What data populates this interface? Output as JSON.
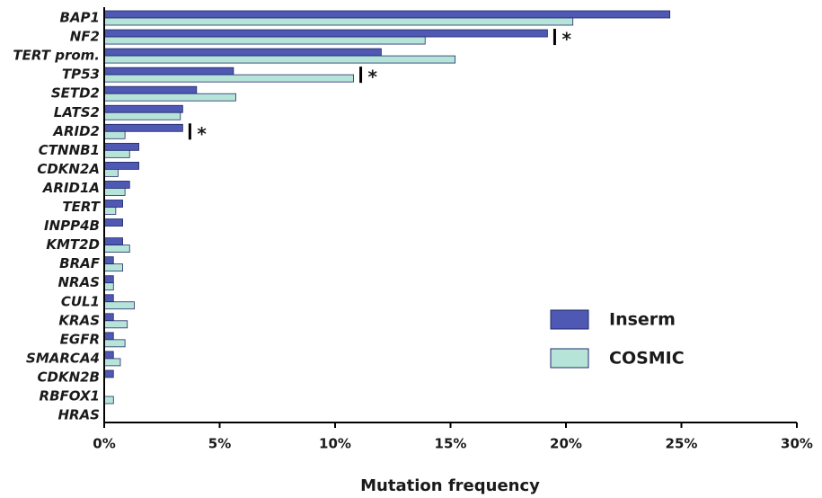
{
  "chart_data": {
    "type": "hbar",
    "x_label": "Mutation frequency",
    "categories": [
      "BAP1",
      "NF2",
      "TERT prom.",
      "TP53",
      "SETD2",
      "LATS2",
      "ARID2",
      "CTNNB1",
      "CDKN2A",
      "ARID1A",
      "TERT",
      "INPP4B",
      "KMT2D",
      "BRAF",
      "NRAS",
      "CUL1",
      "KRAS",
      "EGFR",
      "SMARCA4",
      "CDKN2B",
      "RBFOX1",
      "HRAS"
    ],
    "series": [
      {
        "name": "Inserm",
        "color": "#4f58b2",
        "values": [
          24.5,
          19.2,
          12.0,
          5.6,
          4.0,
          3.4,
          3.4,
          1.5,
          1.5,
          1.1,
          0.8,
          0.8,
          0.8,
          0.4,
          0.4,
          0.4,
          0.4,
          0.4,
          0.4,
          0.4,
          0,
          0
        ]
      },
      {
        "name": "COSMIC",
        "color": "#b7e4d8",
        "values": [
          20.3,
          13.9,
          15.2,
          10.8,
          5.7,
          3.3,
          0.9,
          1.1,
          0.6,
          0.9,
          0.5,
          0,
          1.1,
          0.8,
          0.4,
          1.3,
          1.0,
          0.9,
          0.7,
          0,
          0.4,
          0
        ]
      }
    ],
    "xlim": [
      0,
      30
    ],
    "xticks": [
      {
        "value": 0,
        "label": "0%"
      },
      {
        "value": 5,
        "label": "5%"
      },
      {
        "value": 10,
        "label": "10%"
      },
      {
        "value": 15,
        "label": "15%"
      },
      {
        "value": 20,
        "label": "20%"
      },
      {
        "value": 25,
        "label": "25%"
      },
      {
        "value": 30,
        "label": "30%"
      }
    ],
    "legend_position": "lower right",
    "annotations": [
      {
        "category": "NF2",
        "text": "*"
      },
      {
        "category": "TP53",
        "text": "*"
      },
      {
        "category": "ARID2",
        "text": "*"
      }
    ]
  }
}
